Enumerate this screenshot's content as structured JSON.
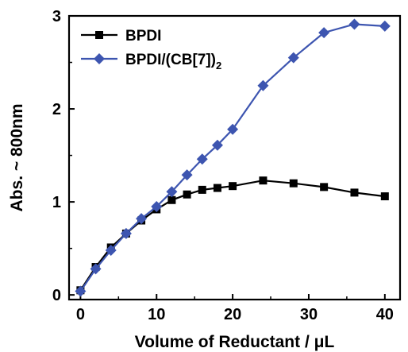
{
  "chart_data": {
    "type": "line",
    "xlabel": "Volume of Reductant / μL",
    "ylabel": "Abs. ~ 800nm",
    "xlim": [
      -1.5,
      42
    ],
    "ylim": [
      -0.05,
      3.0
    ],
    "xticks": [
      0,
      10,
      20,
      30,
      40
    ],
    "xtick_labels": [
      "0",
      "10",
      "20",
      "30",
      "40"
    ],
    "yticks": [
      0,
      1,
      2,
      3
    ],
    "ytick_labels": [
      "0",
      "1",
      "2",
      "3"
    ],
    "grid": false,
    "legend_position": "top-left",
    "series": [
      {
        "name": "BPDI",
        "color": "#000000",
        "marker": "square",
        "x": [
          0,
          2,
          4,
          6,
          8,
          10,
          12,
          14,
          16,
          18,
          20,
          24,
          28,
          32,
          36,
          40
        ],
        "y": [
          0.05,
          0.3,
          0.51,
          0.66,
          0.8,
          0.92,
          1.02,
          1.08,
          1.13,
          1.15,
          1.17,
          1.23,
          1.2,
          1.16,
          1.1,
          1.06
        ]
      },
      {
        "name": "BPDI/(CB[7])",
        "name_subscript": "2",
        "color": "#3d55b0",
        "marker": "diamond",
        "x": [
          0,
          2,
          4,
          6,
          8,
          10,
          12,
          14,
          16,
          18,
          20,
          24,
          28,
          32,
          36,
          40
        ],
        "y": [
          0.04,
          0.28,
          0.48,
          0.66,
          0.82,
          0.95,
          1.11,
          1.29,
          1.46,
          1.61,
          1.78,
          2.25,
          2.55,
          2.82,
          2.91,
          2.89
        ]
      }
    ]
  }
}
